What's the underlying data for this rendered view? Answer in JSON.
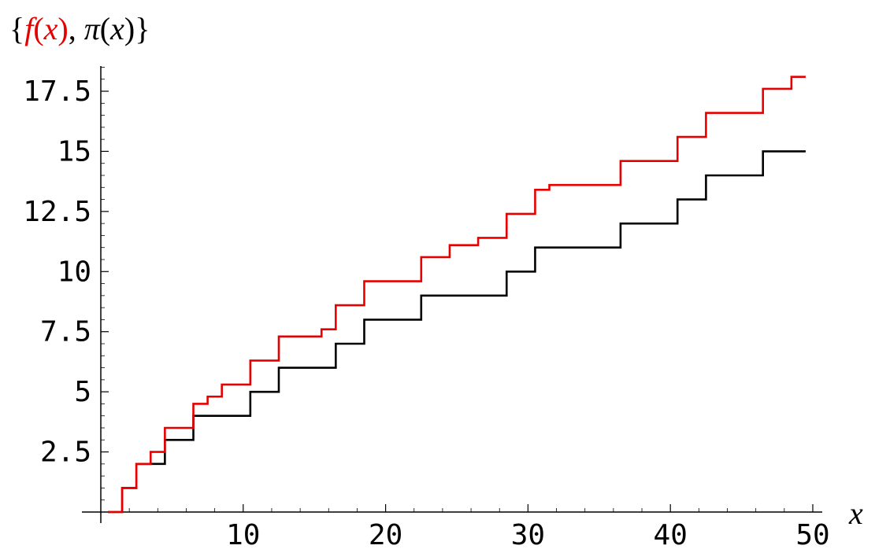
{
  "chart_data": {
    "type": "line",
    "title": {
      "prefix": "{",
      "f_text": "f",
      "f_open": "(",
      "f_var": "x",
      "f_close": ")",
      "separator": ", ",
      "pi_text": "π",
      "pi_open": "(",
      "pi_var": "x",
      "pi_close": ")",
      "suffix": "}"
    },
    "xlabel": "x",
    "ylabel": "",
    "xlim": [
      0,
      50
    ],
    "ylim": [
      0,
      18.5
    ],
    "x_ticks": [
      10,
      20,
      30,
      40,
      50
    ],
    "x_tick_labels": [
      "10",
      "20",
      "30",
      "40",
      "50"
    ],
    "y_ticks": [
      2.5,
      5,
      7.5,
      10,
      12.5,
      15,
      17.5
    ],
    "y_tick_labels": [
      "2.5",
      "5",
      "7.5",
      "10",
      "12.5",
      "15",
      "17.5"
    ],
    "grid": false,
    "colors": {
      "f": "#e60000",
      "pi": "#000000",
      "axis": "#000000"
    },
    "series": [
      {
        "color": "#e60000",
        "step_start": 0.5,
        "step_end": 49.5,
        "steps": [
          [
            0.5,
            0
          ],
          [
            1.5,
            1.0
          ],
          [
            2.5,
            2.0
          ],
          [
            3.5,
            2.5
          ],
          [
            4.5,
            3.5
          ],
          [
            6.5,
            4.5
          ],
          [
            7.5,
            4.8
          ],
          [
            8.5,
            5.3
          ],
          [
            10.5,
            6.3
          ],
          [
            12.5,
            7.3
          ],
          [
            15.5,
            7.6
          ],
          [
            16.5,
            8.6
          ],
          [
            18.5,
            9.6
          ],
          [
            22.5,
            10.6
          ],
          [
            24.5,
            11.1
          ],
          [
            26.5,
            11.4
          ],
          [
            28.5,
            12.4
          ],
          [
            30.5,
            13.4
          ],
          [
            31.5,
            13.6
          ],
          [
            36.5,
            14.6
          ],
          [
            40.5,
            15.6
          ],
          [
            42.5,
            16.6
          ],
          [
            46.5,
            17.6
          ],
          [
            48.5,
            18.1
          ]
        ]
      },
      {
        "color": "#000000",
        "step_start": 0.5,
        "step_end": 49.5,
        "steps": [
          [
            0.5,
            0
          ],
          [
            1.5,
            1
          ],
          [
            2.5,
            2
          ],
          [
            4.5,
            3
          ],
          [
            6.5,
            4
          ],
          [
            10.5,
            5
          ],
          [
            12.5,
            6
          ],
          [
            16.5,
            7
          ],
          [
            18.5,
            8
          ],
          [
            22.5,
            9
          ],
          [
            28.5,
            10
          ],
          [
            30.5,
            11
          ],
          [
            36.5,
            12
          ],
          [
            40.5,
            13
          ],
          [
            42.5,
            14
          ],
          [
            46.5,
            15
          ]
        ]
      }
    ]
  }
}
